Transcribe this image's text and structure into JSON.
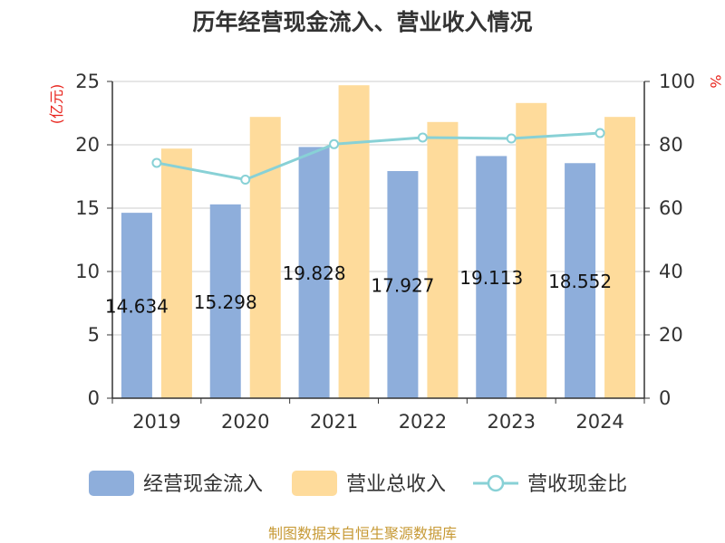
{
  "chart_data": {
    "type": "bar",
    "title": "历年经营现金流入、营业收入情况",
    "categories": [
      "2019",
      "2020",
      "2021",
      "2022",
      "2023",
      "2024"
    ],
    "y_left": {
      "unit": "(亿元)",
      "ylim": [
        0,
        25
      ],
      "ticks": [
        0,
        5,
        10,
        15,
        20,
        25
      ]
    },
    "y_right": {
      "unit": "%",
      "ylim": [
        0,
        100
      ],
      "ticks": [
        0,
        20,
        40,
        60,
        80,
        100
      ]
    },
    "series": [
      {
        "name": "经营现金流入",
        "type": "bar",
        "axis": "left",
        "color": "#8eaedb",
        "values": [
          14.634,
          15.298,
          19.828,
          17.927,
          19.113,
          18.552
        ],
        "labels": [
          "14.634",
          "15.298",
          "19.828",
          "17.927",
          "19.113",
          "18.552"
        ]
      },
      {
        "name": "营业总收入",
        "type": "bar",
        "axis": "left",
        "color": "#fedb9b",
        "values": [
          19.7,
          22.2,
          24.7,
          21.8,
          23.3,
          22.2
        ]
      },
      {
        "name": "营收现金比",
        "type": "line",
        "axis": "right",
        "color": "#88d1d6",
        "values": [
          74.3,
          69.0,
          80.2,
          82.3,
          82.0,
          83.7
        ]
      }
    ],
    "grid": true,
    "legend": "bottom"
  },
  "footer": {
    "source": "制图数据来自恒生聚源数据库"
  }
}
